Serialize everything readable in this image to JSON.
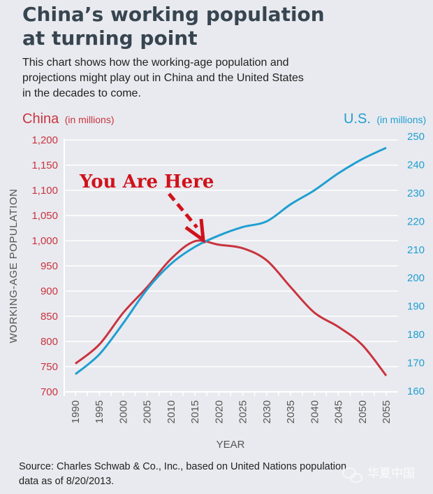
{
  "title_lines": [
    "China’s working population",
    "at turning point"
  ],
  "subtitle_lines": [
    "This chart shows how the working-age population and",
    "projections might play out in China and the United States",
    "in the decades to come."
  ],
  "source_lines": [
    "Source: Charles Schwab & Co., Inc., based on United Nations population",
    "data as of 8/20/2013."
  ],
  "watermark": "华夏中国",
  "colors": {
    "china": "#c8343f",
    "us": "#1f9fd1",
    "annotation": "#d0121b",
    "grid": "#ffffff",
    "background": "#e9eaef"
  },
  "chart_data": {
    "type": "line",
    "title": "China’s working population at turning point",
    "xlabel": "YEAR",
    "ylabel": "WORKING-AGE POPULATION",
    "left_axis": {
      "name": "China",
      "unit": "(in millions)",
      "range": [
        700,
        1200
      ],
      "ticks": [
        "700",
        "750",
        "800",
        "850",
        "900",
        "950",
        "1,000",
        "1,050",
        "1,100",
        "1,150",
        "1,200"
      ]
    },
    "right_axis": {
      "name": "U.S.",
      "unit": "(in millions)",
      "range": [
        160,
        250
      ],
      "ticks": [
        "160",
        "170",
        "180",
        "190",
        "200",
        "210",
        "220",
        "230",
        "240",
        "250"
      ]
    },
    "x": [
      1990,
      1995,
      2000,
      2005,
      2010,
      2015,
      2020,
      2025,
      2030,
      2035,
      2040,
      2045,
      2050,
      2055
    ],
    "x_tick_labels": [
      "1990",
      "1995",
      "2000",
      "2005",
      "2010",
      "2015",
      "2020",
      "2025",
      "2030",
      "2035",
      "2040",
      "2045",
      "2050",
      "2055"
    ],
    "series": [
      {
        "name": "China",
        "axis": "left",
        "values": [
          756,
          794,
          857,
          908,
          964,
          999,
          992,
          985,
          961,
          908,
          857,
          829,
          793,
          732
        ]
      },
      {
        "name": "U.S.",
        "axis": "right",
        "values": [
          166,
          173,
          184,
          196,
          205,
          211,
          215,
          218,
          220,
          226,
          231,
          237,
          242,
          246
        ]
      }
    ],
    "grid": true,
    "annotation": {
      "text": "You Are Here",
      "x": 2017
    }
  }
}
